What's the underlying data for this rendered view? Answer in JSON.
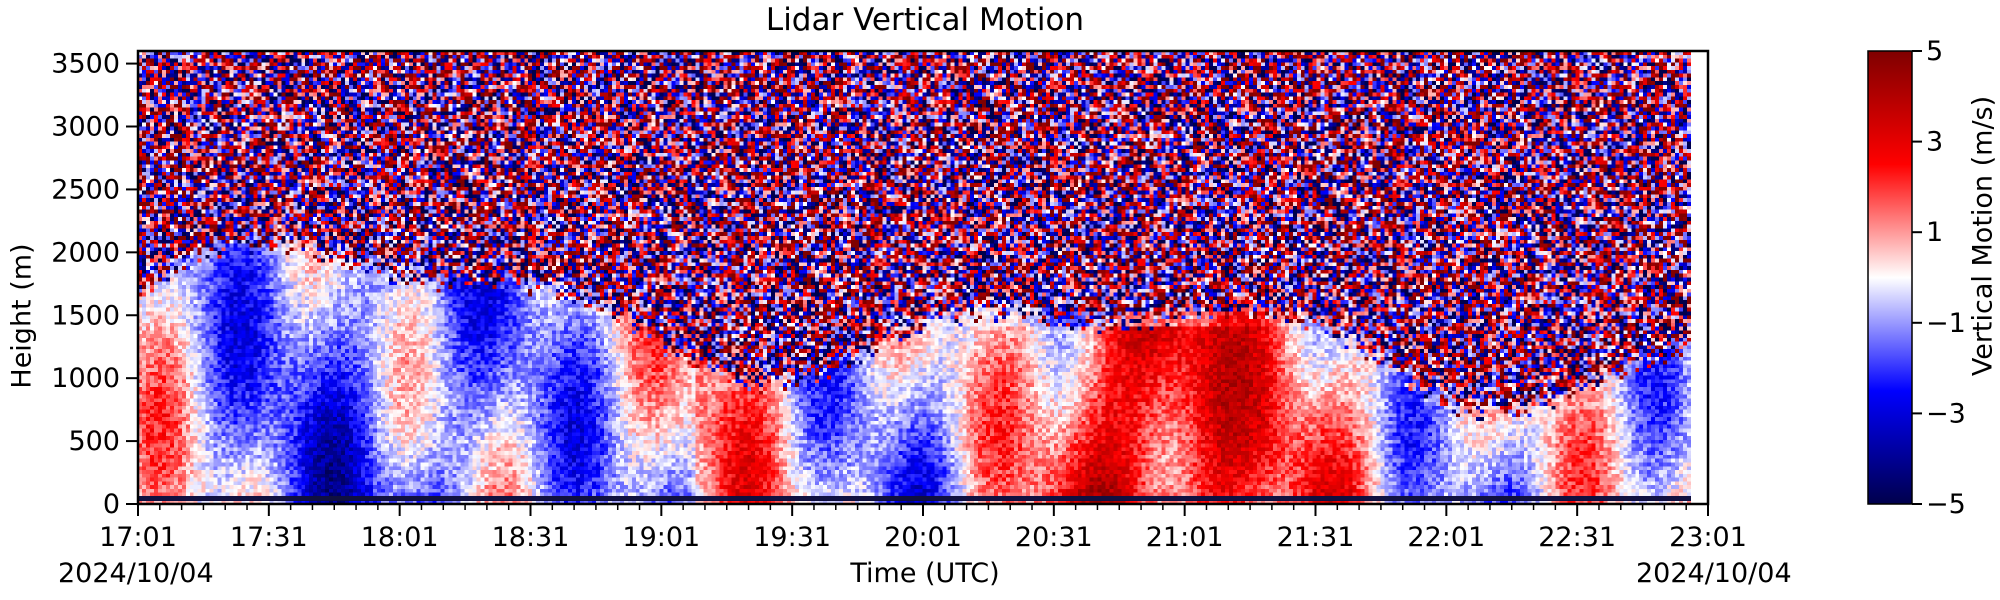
{
  "chart_data": {
    "type": "heatmap",
    "title": "Lidar Vertical Motion",
    "xlabel": "Time (UTC)",
    "ylabel": "Height (m)",
    "x_start_date": "2024/10/04",
    "x_end_date": "2024/10/04",
    "x_range": [
      "17:01",
      "23:01"
    ],
    "x_ticks": [
      "17:01",
      "17:31",
      "18:01",
      "18:31",
      "19:01",
      "19:31",
      "20:01",
      "20:31",
      "21:01",
      "21:31",
      "22:01",
      "22:31",
      "23:01"
    ],
    "y_range": [
      0,
      3600
    ],
    "y_ticks": [
      0,
      500,
      1000,
      1500,
      2000,
      2500,
      3000,
      3500
    ],
    "colorbar": {
      "label": "Vertical Motion (m/s)",
      "range": [
        -5,
        5
      ],
      "ticks": [
        "5",
        "3",
        "1",
        "−1",
        "−3",
        "−5"
      ],
      "colormap": "seismic",
      "low_color": "#00004c",
      "mid_color": "#ffffff",
      "high_color": "#7f0000"
    }
  }
}
